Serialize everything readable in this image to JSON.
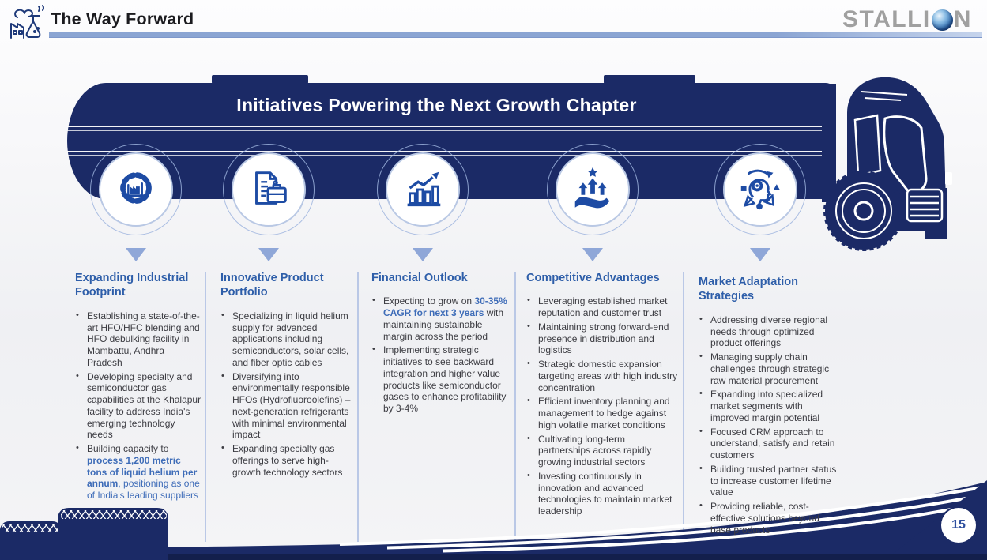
{
  "header": {
    "title": "The Way Forward",
    "brand": "STALLION",
    "logo_pre": "STALLI",
    "logo_post": "N"
  },
  "banner": {
    "title": "Initiatives Powering the Next Growth Chapter"
  },
  "footer": {
    "page_number": "15"
  },
  "colors": {
    "navy": "#1b2a66",
    "icon_blue": "#1d4ba4",
    "heading_blue": "#2e5ea9",
    "highlight_blue": "#3e6cb8",
    "arrow_blue": "#8fa7d8",
    "logo_gray": "#a0a0a0"
  },
  "columns": [
    {
      "icon": "gear-factory-icon",
      "heading": "Expanding Industrial Footprint",
      "bullets": [
        [
          {
            "t": "Establishing a state-of-the-art HFO/HFC blending and HFO debulking facility in Mambattu, Andhra Pradesh",
            "s": ""
          }
        ],
        [
          {
            "t": "Developing specialty and semiconductor gas capabilities at the Khalapur facility to address India's emerging technology needs",
            "s": ""
          }
        ],
        [
          {
            "t": "Building capacity to ",
            "s": ""
          },
          {
            "t": "process 1,200 metric tons of liquid helium per annum",
            "s": "hb"
          },
          {
            "t": ", ",
            "s": "hl"
          },
          {
            "t": "positioning as one of India's leading suppliers",
            "s": "hl"
          }
        ]
      ]
    },
    {
      "icon": "document-briefcase-icon",
      "heading": "Innovative Product Portfolio",
      "bullets": [
        [
          {
            "t": "Specializing in liquid helium supply for advanced applications including semiconductors, solar cells, and fiber optic cables",
            "s": ""
          }
        ],
        [
          {
            "t": "Diversifying into environmentally responsible HFOs (Hydrofluoroolefins) – next-generation refrigerants with minimal environmental impact",
            "s": ""
          }
        ],
        [
          {
            "t": "Expanding specialty gas offerings to serve high-growth technology sectors",
            "s": ""
          }
        ]
      ]
    },
    {
      "icon": "growth-chart-icon",
      "heading": "Financial Outlook",
      "bullets": [
        [
          {
            "t": "Expecting to grow on ",
            "s": ""
          },
          {
            "t": "30-35% CAGR for next 3 years",
            "s": "hb"
          },
          {
            "t": " with maintaining sustainable margin across the period",
            "s": ""
          }
        ],
        [
          {
            "t": "Implementing strategic initiatives to see backward integration and higher value products like semiconductor gases to enhance profitability by 3-4%",
            "s": ""
          }
        ]
      ]
    },
    {
      "icon": "hand-growth-arrows-icon",
      "heading": "Competitive Advantages",
      "bullets": [
        [
          {
            "t": "Leveraging established market reputation and customer trust",
            "s": ""
          }
        ],
        [
          {
            "t": "Maintaining strong forward-end presence in distribution and logistics",
            "s": ""
          }
        ],
        [
          {
            "t": "Strategic domestic expansion targeting areas with high industry concentration",
            "s": ""
          }
        ],
        [
          {
            "t": "Efficient inventory planning and management to hedge against high volatile market conditions",
            "s": ""
          }
        ],
        [
          {
            "t": "Cultivating long-term partnerships across rapidly growing industrial sectors",
            "s": ""
          }
        ],
        [
          {
            "t": "Investing continuously in innovation and advanced technologies to maintain market leadership",
            "s": ""
          }
        ]
      ]
    },
    {
      "icon": "adaptive-mind-icon",
      "heading": "Market Adaptation Strategies",
      "bullets": [
        [
          {
            "t": "Addressing diverse regional needs through optimized product offerings",
            "s": ""
          }
        ],
        [
          {
            "t": "Managing supply chain challenges through strategic raw material procurement",
            "s": ""
          }
        ],
        [
          {
            "t": "Expanding into specialized market segments with improved margin potential",
            "s": ""
          }
        ],
        [
          {
            "t": "Focused CRM approach to understand, satisfy and retain customers",
            "s": ""
          }
        ],
        [
          {
            "t": "Building trusted partner status to increase customer lifetime value",
            "s": ""
          }
        ],
        [
          {
            "t": "Providing reliable, cost-effective solutions beyond base products",
            "s": ""
          }
        ]
      ]
    }
  ]
}
